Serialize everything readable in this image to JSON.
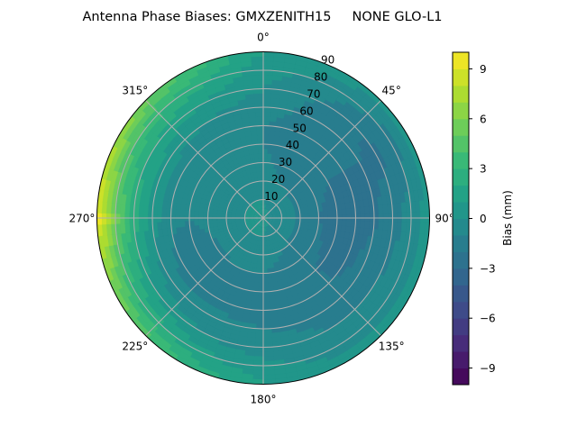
{
  "chart_data": {
    "type": "heatmap",
    "subtype": "polar-contour",
    "title": "Antenna Phase Biases: GMXZENITH15     NONE GLO-L1",
    "angular_ticks": [
      "0°",
      "45°",
      "90°",
      "135°",
      "180°",
      "225°",
      "270°",
      "315°"
    ],
    "angular_tick_values": [
      0,
      45,
      90,
      135,
      180,
      225,
      270,
      315
    ],
    "radial_ticks": [
      "10",
      "20",
      "30",
      "40",
      "50",
      "60",
      "70",
      "80",
      "90"
    ],
    "radial_tick_values": [
      10,
      20,
      30,
      40,
      50,
      60,
      70,
      80,
      90
    ],
    "radial_range": [
      0,
      90
    ],
    "direction": "clockwise",
    "zero_location": "top",
    "grid": true,
    "colormap": "viridis",
    "levels": [
      -10,
      10,
      1
    ],
    "colorbar": {
      "label": "Bias (mm)",
      "range": [
        -10,
        10
      ],
      "ticks": [
        "9",
        "6",
        "3",
        "0",
        "−3",
        "−6",
        "−9"
      ],
      "tick_values": [
        9,
        6,
        3,
        0,
        -3,
        -6,
        -9
      ],
      "placement": "right"
    },
    "azimuth": [
      0,
      30,
      60,
      90,
      120,
      150,
      180,
      210,
      240,
      270,
      300,
      330
    ],
    "zenith": [
      0,
      10,
      20,
      30,
      40,
      50,
      60,
      70,
      80,
      90
    ],
    "values": [
      [
        0.2,
        0,
        -0.5,
        -0.8,
        -1,
        -1,
        -0.5,
        0,
        0.5,
        1
      ],
      [
        0.2,
        -0.3,
        -1,
        -1.5,
        -1.5,
        -1.5,
        -1.5,
        -1.2,
        -0.5,
        0.5
      ],
      [
        0.2,
        -0.5,
        -1.2,
        -1.8,
        -2,
        -2,
        -2,
        -2.3,
        -1.5,
        0.3
      ],
      [
        0.2,
        -0.5,
        -1.2,
        -2,
        -2.3,
        -2.6,
        -2.2,
        -1.5,
        -0.5,
        0.5
      ],
      [
        0.2,
        -0.5,
        -1.2,
        -1.8,
        -2.2,
        -2.3,
        -1.5,
        -1,
        -0.5,
        0.5
      ],
      [
        0.2,
        -0.3,
        -1,
        -1.5,
        -1.8,
        -1.6,
        -1.3,
        -1,
        -0.5,
        0.5
      ],
      [
        0.2,
        0,
        -0.5,
        -1,
        -1.3,
        -1.3,
        -1,
        -0.5,
        0.3,
        1
      ],
      [
        0.2,
        0,
        -0.5,
        -1,
        -1.5,
        -1.2,
        -0.8,
        0,
        1.5,
        3
      ],
      [
        0.3,
        0,
        -0.5,
        -1.2,
        -1.5,
        -1.3,
        -0.5,
        1,
        3,
        5.5
      ],
      [
        0.3,
        0,
        -0.3,
        -0.8,
        -1,
        -0.8,
        0.5,
        2.5,
        5.5,
        9.5
      ],
      [
        0.3,
        0,
        -0.3,
        -0.8,
        -1,
        -0.5,
        0.5,
        2,
        4,
        7
      ],
      [
        0.3,
        0,
        -0.3,
        -0.8,
        -1,
        -0.8,
        0,
        1,
        2.5,
        4
      ]
    ]
  }
}
